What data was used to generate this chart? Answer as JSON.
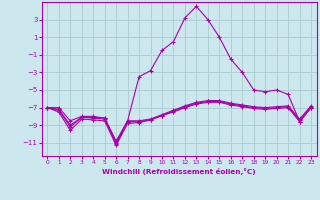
{
  "xlabel": "Windchill (Refroidissement éolien,°C)",
  "background_color": "#cce8ee",
  "grid_color": "#aacccc",
  "line_color": "#aa00aa",
  "xlim": [
    -0.5,
    23.5
  ],
  "ylim": [
    -12.5,
    5.0
  ],
  "yticks": [
    3,
    1,
    -1,
    -3,
    -5,
    -7,
    -9,
    -11
  ],
  "xticks": [
    0,
    1,
    2,
    3,
    4,
    5,
    6,
    7,
    8,
    9,
    10,
    11,
    12,
    13,
    14,
    15,
    16,
    17,
    18,
    19,
    20,
    21,
    22,
    23
  ],
  "line1_x": [
    0,
    1,
    2,
    3,
    4,
    5,
    6,
    7,
    8,
    9,
    10,
    11,
    12,
    13,
    14,
    15,
    16,
    17,
    18,
    19,
    20,
    21,
    22,
    23
  ],
  "line1_y": [
    -7.0,
    -7.5,
    -9.6,
    -8.3,
    -8.4,
    -8.5,
    -11.3,
    -8.8,
    -8.7,
    -8.4,
    -7.9,
    -7.5,
    -7.0,
    -6.6,
    -6.4,
    -6.4,
    -6.7,
    -6.9,
    -7.1,
    -7.2,
    -7.1,
    -7.0,
    -8.6,
    -7.0
  ],
  "line2_x": [
    0,
    1,
    2,
    3,
    4,
    5,
    6,
    7,
    8,
    9,
    10,
    11,
    12,
    13,
    14,
    15,
    16,
    17,
    18,
    19,
    20,
    21,
    22,
    23
  ],
  "line2_y": [
    -7.0,
    -7.3,
    -9.2,
    -8.1,
    -8.1,
    -8.2,
    -11.0,
    -8.5,
    -8.5,
    -8.3,
    -7.8,
    -7.3,
    -6.8,
    -6.4,
    -6.2,
    -6.2,
    -6.5,
    -6.7,
    -6.9,
    -7.0,
    -6.9,
    -6.8,
    -8.3,
    -6.8
  ],
  "line3_x": [
    0,
    1,
    2,
    3,
    4,
    5,
    6,
    7,
    8,
    9,
    10,
    11,
    12,
    13,
    14,
    15,
    16,
    17,
    18,
    19,
    20,
    21,
    22,
    23
  ],
  "line3_y": [
    -7.0,
    -7.0,
    -8.5,
    -8.0,
    -8.0,
    -8.2,
    -10.8,
    -8.5,
    -3.5,
    -2.8,
    -0.5,
    0.5,
    3.2,
    4.5,
    3.0,
    1.0,
    -1.5,
    -3.0,
    -5.0,
    -5.2,
    -5.0,
    -5.5,
    -8.6,
    -7.0
  ],
  "line4_x": [
    0,
    1,
    2,
    3,
    4,
    5,
    6,
    7,
    8,
    9,
    10,
    11,
    12,
    13,
    14,
    15,
    16,
    17,
    18,
    19,
    20,
    21,
    22,
    23
  ],
  "line4_y": [
    -7.0,
    -7.2,
    -9.0,
    -8.1,
    -8.2,
    -8.3,
    -11.1,
    -8.6,
    -8.6,
    -8.4,
    -7.9,
    -7.4,
    -6.9,
    -6.5,
    -6.3,
    -6.3,
    -6.6,
    -6.8,
    -7.0,
    -7.1,
    -7.0,
    -6.9,
    -8.4,
    -6.9
  ]
}
